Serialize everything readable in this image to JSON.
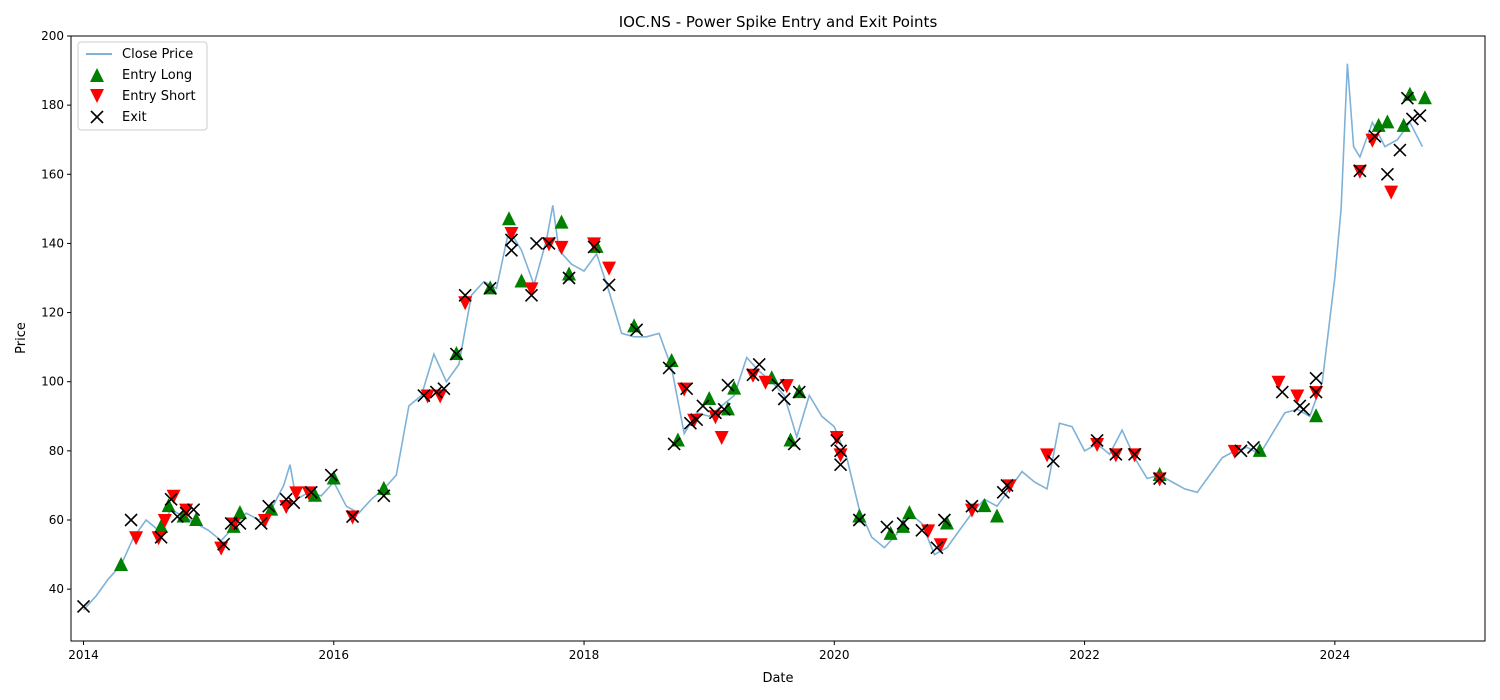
{
  "chart_data": {
    "type": "line",
    "title": "IOC.NS - Power Spike Entry and Exit Points",
    "xlabel": "Date",
    "ylabel": "Price",
    "xlim": [
      2013.9,
      2025.2
    ],
    "ylim": [
      25,
      200
    ],
    "x_ticks": [
      2014,
      2016,
      2018,
      2020,
      2022,
      2024
    ],
    "y_ticks": [
      40,
      60,
      80,
      100,
      120,
      140,
      160,
      180,
      200
    ],
    "legend": {
      "placement": "top-left",
      "entries": [
        "Close Price",
        "Entry Long",
        "Entry Short",
        "Exit"
      ]
    },
    "colors": {
      "close": "#7fb2d8",
      "long": "#008000",
      "short": "#ff0000",
      "exit": "#000000"
    },
    "series": [
      {
        "name": "Close Price",
        "x": [
          2014.0,
          2014.1,
          2014.2,
          2014.3,
          2014.4,
          2014.5,
          2014.6,
          2014.7,
          2014.8,
          2014.9,
          2015.0,
          2015.1,
          2015.2,
          2015.3,
          2015.4,
          2015.5,
          2015.6,
          2015.65,
          2015.7,
          2015.8,
          2015.9,
          2016.0,
          2016.1,
          2016.2,
          2016.3,
          2016.4,
          2016.5,
          2016.6,
          2016.7,
          2016.8,
          2016.9,
          2017.0,
          2017.1,
          2017.2,
          2017.3,
          2017.4,
          2017.5,
          2017.6,
          2017.7,
          2017.75,
          2017.8,
          2017.9,
          2018.0,
          2018.1,
          2018.2,
          2018.3,
          2018.4,
          2018.5,
          2018.6,
          2018.7,
          2018.8,
          2018.9,
          2019.0,
          2019.1,
          2019.2,
          2019.3,
          2019.4,
          2019.5,
          2019.6,
          2019.7,
          2019.8,
          2019.9,
          2020.0,
          2020.1,
          2020.2,
          2020.3,
          2020.4,
          2020.5,
          2020.6,
          2020.7,
          2020.8,
          2020.9,
          2021.0,
          2021.1,
          2021.2,
          2021.3,
          2021.4,
          2021.5,
          2021.6,
          2021.7,
          2021.8,
          2021.9,
          2022.0,
          2022.1,
          2022.2,
          2022.3,
          2022.4,
          2022.5,
          2022.6,
          2022.7,
          2022.8,
          2022.9,
          2023.0,
          2023.1,
          2023.2,
          2023.3,
          2023.4,
          2023.5,
          2023.6,
          2023.7,
          2023.8,
          2023.9,
          2024.0,
          2024.05,
          2024.1,
          2024.15,
          2024.2,
          2024.3,
          2024.4,
          2024.5,
          2024.6,
          2024.7
        ],
        "values": [
          34,
          38,
          43,
          47,
          55,
          60,
          57,
          63,
          61,
          59,
          57,
          54,
          58,
          62,
          60,
          63,
          70,
          76,
          66,
          68,
          67,
          71,
          64,
          62,
          66,
          69,
          73,
          93,
          96,
          108,
          100,
          105,
          125,
          129,
          127,
          144,
          138,
          128,
          141,
          151,
          138,
          134,
          132,
          137,
          126,
          114,
          113,
          113,
          114,
          104,
          85,
          91,
          90,
          93,
          96,
          107,
          103,
          100,
          96,
          84,
          96,
          90,
          87,
          78,
          63,
          55,
          52,
          56,
          62,
          59,
          50,
          52,
          57,
          62,
          66,
          64,
          69,
          74,
          71,
          69,
          88,
          87,
          80,
          82,
          79,
          86,
          78,
          72,
          73,
          71,
          69,
          68,
          73,
          78,
          80,
          81,
          79,
          85,
          91,
          92,
          90,
          100,
          130,
          150,
          192,
          168,
          165,
          175,
          168,
          170,
          175,
          168
        ]
      }
    ],
    "entry_long": {
      "x": [
        2014.3,
        2014.62,
        2014.68,
        2014.8,
        2014.9,
        2015.2,
        2015.25,
        2015.5,
        2015.85,
        2016.0,
        2016.4,
        2016.98,
        2017.25,
        2017.4,
        2017.5,
        2017.82,
        2017.88,
        2018.1,
        2018.4,
        2018.7,
        2018.75,
        2019.0,
        2019.15,
        2019.2,
        2019.5,
        2019.65,
        2019.72,
        2020.2,
        2020.45,
        2020.55,
        2020.6,
        2020.9,
        2021.2,
        2021.3,
        2022.6,
        2023.4,
        2023.85,
        2024.35,
        2024.42,
        2024.55,
        2024.6,
        2024.72
      ],
      "values": [
        47,
        58,
        64,
        61,
        60,
        58,
        62,
        63,
        67,
        72,
        69,
        108,
        127,
        147,
        129,
        146,
        131,
        139,
        116,
        106,
        83,
        95,
        92,
        98,
        101,
        83,
        97,
        61,
        56,
        58,
        62,
        59,
        64,
        61,
        73,
        80,
        90,
        174,
        175,
        174,
        183,
        182
      ]
    },
    "entry_short": {
      "x": [
        2014.42,
        2014.6,
        2014.65,
        2014.72,
        2014.82,
        2015.1,
        2015.2,
        2015.45,
        2015.62,
        2015.7,
        2015.8,
        2016.15,
        2016.75,
        2016.85,
        2017.05,
        2017.42,
        2017.58,
        2017.72,
        2017.82,
        2018.08,
        2018.2,
        2018.8,
        2018.88,
        2019.05,
        2019.1,
        2019.35,
        2019.45,
        2019.62,
        2020.02,
        2020.05,
        2020.75,
        2020.85,
        2021.1,
        2021.4,
        2021.7,
        2022.1,
        2022.25,
        2022.4,
        2022.6,
        2023.2,
        2023.55,
        2023.7,
        2023.85,
        2024.2,
        2024.3,
        2024.45
      ],
      "values": [
        55,
        55,
        60,
        67,
        63,
        52,
        59,
        60,
        64,
        68,
        68,
        61,
        96,
        96,
        123,
        143,
        127,
        140,
        139,
        140,
        133,
        98,
        89,
        90,
        84,
        102,
        100,
        99,
        84,
        79,
        57,
        53,
        63,
        70,
        79,
        82,
        79,
        79,
        72,
        80,
        100,
        96,
        97,
        161,
        170,
        155
      ]
    },
    "exit": {
      "x": [
        2014.0,
        2014.38,
        2014.62,
        2014.7,
        2014.75,
        2014.82,
        2014.88,
        2015.12,
        2015.18,
        2015.25,
        2015.42,
        2015.48,
        2015.62,
        2015.68,
        2015.82,
        2015.98,
        2016.15,
        2016.4,
        2016.72,
        2016.82,
        2016.88,
        2016.98,
        2017.05,
        2017.25,
        2017.42,
        2017.42,
        2017.58,
        2017.62,
        2017.72,
        2017.88,
        2018.08,
        2018.2,
        2018.42,
        2018.68,
        2018.72,
        2018.82,
        2018.85,
        2018.9,
        2018.95,
        2019.05,
        2019.12,
        2019.15,
        2019.35,
        2019.4,
        2019.55,
        2019.6,
        2019.68,
        2019.72,
        2020.02,
        2020.05,
        2020.05,
        2020.2,
        2020.42,
        2020.55,
        2020.7,
        2020.82,
        2020.88,
        2021.1,
        2021.35,
        2021.38,
        2021.75,
        2022.1,
        2022.25,
        2022.4,
        2022.6,
        2023.25,
        2023.35,
        2023.58,
        2023.72,
        2023.75,
        2023.85,
        2023.85,
        2024.2,
        2024.32,
        2024.42,
        2024.52,
        2024.58,
        2024.62,
        2024.68
      ],
      "values": [
        35,
        60,
        55,
        66,
        61,
        62,
        63,
        53,
        59,
        59,
        59,
        64,
        66,
        65,
        68,
        73,
        61,
        67,
        96,
        97,
        98,
        108,
        125,
        127,
        138,
        141,
        125,
        140,
        140,
        130,
        139,
        128,
        115,
        104,
        82,
        98,
        88,
        89,
        93,
        91,
        92,
        99,
        102,
        105,
        99,
        95,
        82,
        97,
        83,
        80,
        76,
        60,
        58,
        59,
        57,
        52,
        60,
        64,
        68,
        70,
        77,
        83,
        79,
        79,
        72,
        80,
        81,
        97,
        93,
        92,
        97,
        101,
        161,
        171,
        160,
        167,
        182,
        176,
        177
      ]
    }
  }
}
